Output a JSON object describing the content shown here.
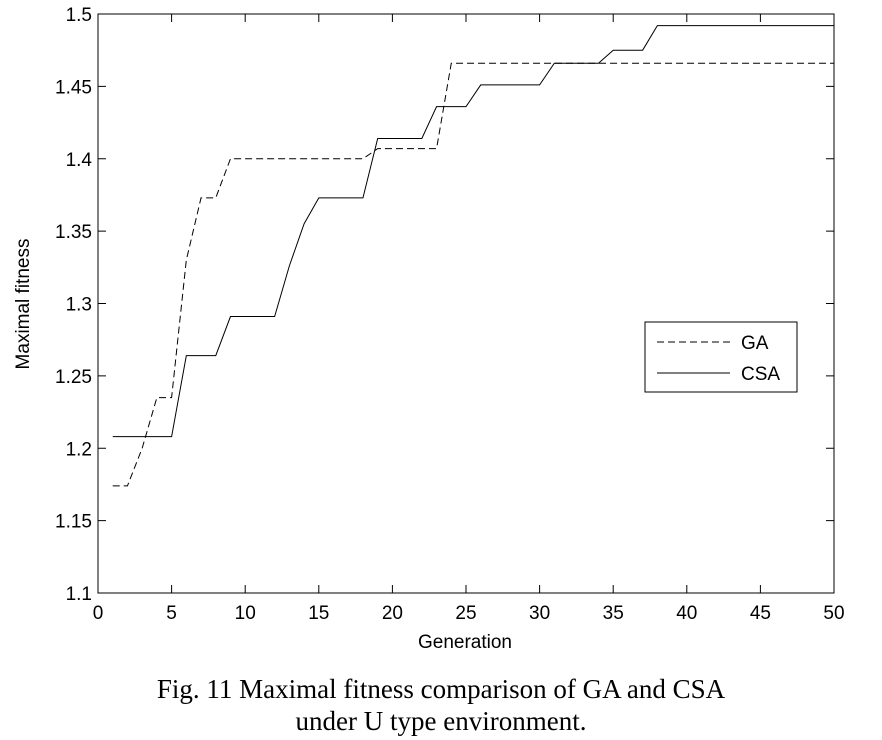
{
  "caption": {
    "line1": "Fig. 11 Maximal fitness comparison of GA and CSA",
    "line2": "under U type environment."
  },
  "chart_data": {
    "type": "line",
    "title": "",
    "xlabel": "Generation",
    "ylabel": "Maximal fitness",
    "xlim": [
      0,
      50
    ],
    "ylim": [
      1.1,
      1.5
    ],
    "xticks": [
      "0",
      "5",
      "10",
      "15",
      "20",
      "25",
      "30",
      "35",
      "40",
      "45",
      "50"
    ],
    "yticks": [
      "1.1",
      "1.15",
      "1.2",
      "1.25",
      "1.3",
      "1.35",
      "1.4",
      "1.45",
      "1.5"
    ],
    "grid": false,
    "legend_position": "right",
    "series": [
      {
        "name": "GA",
        "style": "dashed",
        "color": "#000000",
        "x": [
          1,
          2,
          3,
          4,
          5,
          6,
          7,
          8,
          9,
          10,
          11,
          12,
          13,
          14,
          15,
          16,
          17,
          18,
          19,
          20,
          21,
          22,
          23,
          24,
          25,
          26,
          27,
          28,
          29,
          30,
          31,
          32,
          33,
          34,
          35,
          36,
          37,
          38,
          39,
          40,
          41,
          42,
          43,
          44,
          45,
          46,
          47,
          48,
          49,
          50
        ],
        "y": [
          1.174,
          1.174,
          1.2,
          1.235,
          1.235,
          1.33,
          1.373,
          1.373,
          1.4,
          1.4,
          1.4,
          1.4,
          1.4,
          1.4,
          1.4,
          1.4,
          1.4,
          1.4,
          1.407,
          1.407,
          1.407,
          1.407,
          1.407,
          1.466,
          1.466,
          1.466,
          1.466,
          1.466,
          1.466,
          1.466,
          1.466,
          1.466,
          1.466,
          1.466,
          1.466,
          1.466,
          1.466,
          1.466,
          1.466,
          1.466,
          1.466,
          1.466,
          1.466,
          1.466,
          1.466,
          1.466,
          1.466,
          1.466,
          1.466,
          1.466
        ]
      },
      {
        "name": "CSA",
        "style": "solid",
        "color": "#000000",
        "x": [
          1,
          2,
          3,
          4,
          5,
          6,
          7,
          8,
          9,
          10,
          11,
          12,
          13,
          14,
          15,
          16,
          17,
          18,
          19,
          20,
          21,
          22,
          23,
          24,
          25,
          26,
          27,
          28,
          29,
          30,
          31,
          32,
          33,
          34,
          35,
          36,
          37,
          38,
          39,
          40,
          41,
          42,
          43,
          44,
          45,
          46,
          47,
          48,
          49,
          50
        ],
        "y": [
          1.208,
          1.208,
          1.208,
          1.208,
          1.208,
          1.264,
          1.264,
          1.264,
          1.291,
          1.291,
          1.291,
          1.291,
          1.326,
          1.355,
          1.373,
          1.373,
          1.373,
          1.373,
          1.414,
          1.414,
          1.414,
          1.414,
          1.436,
          1.436,
          1.436,
          1.451,
          1.451,
          1.451,
          1.451,
          1.451,
          1.466,
          1.466,
          1.466,
          1.466,
          1.475,
          1.475,
          1.475,
          1.492,
          1.492,
          1.492,
          1.492,
          1.492,
          1.492,
          1.492,
          1.492,
          1.492,
          1.492,
          1.492,
          1.492,
          1.492
        ]
      }
    ]
  }
}
